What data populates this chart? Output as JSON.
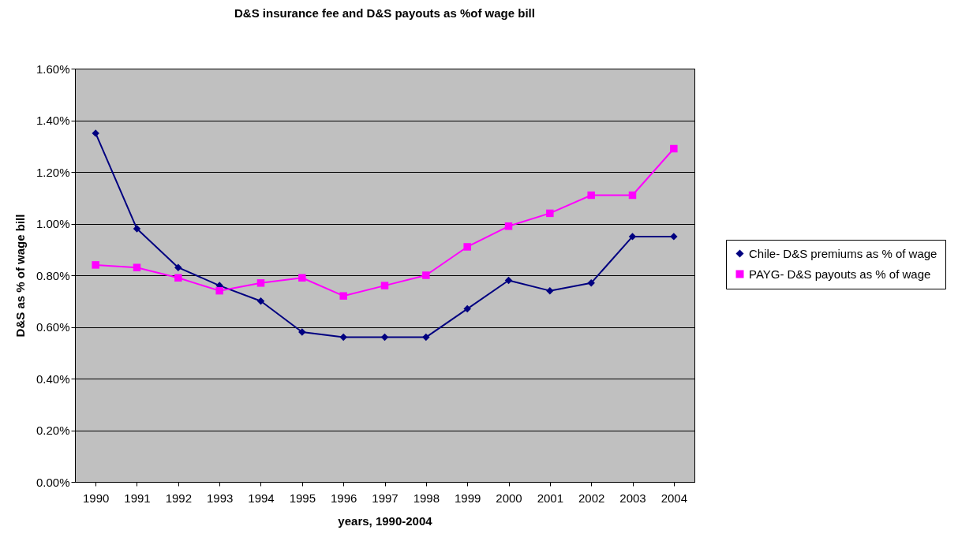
{
  "chart_data": {
    "type": "line",
    "title": "D&S insurance fee and D&S payouts as %of wage bill",
    "xlabel": "years, 1990-2004",
    "ylabel": "D&S as % of wage bill",
    "categories": [
      "1990",
      "1991",
      "1992",
      "1993",
      "1994",
      "1995",
      "1996",
      "1997",
      "1998",
      "1999",
      "2000",
      "2001",
      "2002",
      "2003",
      "2004"
    ],
    "series": [
      {
        "name": "Chile- D&S premiums as % of wage",
        "color": "#000080",
        "marker": "diamond",
        "values": [
          1.35,
          0.98,
          0.83,
          0.76,
          0.7,
          0.58,
          0.56,
          0.56,
          0.56,
          0.67,
          0.78,
          0.74,
          0.77,
          0.95,
          0.95
        ]
      },
      {
        "name": "PAYG- D&S payouts as % of wage",
        "color": "#ff00ff",
        "marker": "square",
        "values": [
          0.84,
          0.83,
          0.79,
          0.74,
          0.77,
          0.79,
          0.72,
          0.76,
          0.8,
          0.91,
          0.99,
          1.04,
          1.11,
          1.11,
          1.29
        ]
      }
    ],
    "ylim": [
      0,
      1.6
    ],
    "yticks": [
      {
        "value": 0,
        "label": "0.00%"
      },
      {
        "value": 0.2,
        "label": "0.20%"
      },
      {
        "value": 0.4,
        "label": "0.40%"
      },
      {
        "value": 0.6,
        "label": "0.60%"
      },
      {
        "value": 0.8,
        "label": "0.80%"
      },
      {
        "value": 1.0,
        "label": "1.00%"
      },
      {
        "value": 1.2,
        "label": "1.20%"
      },
      {
        "value": 1.4,
        "label": "1.40%"
      },
      {
        "value": 1.6,
        "label": "1.60%"
      }
    ],
    "grid": "y",
    "legend": "right",
    "line_style": "solid"
  }
}
